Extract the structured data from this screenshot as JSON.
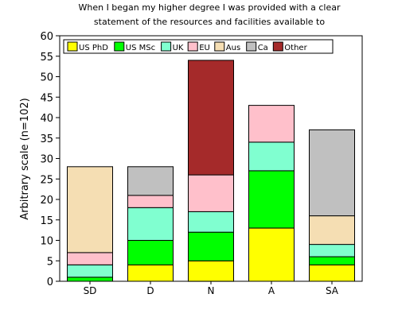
{
  "chart_data": {
    "type": "bar",
    "stacked": true,
    "title_lines": [
      "When I began my higher degree I was provided with a clear",
      "statement of the resources and facilities available to"
    ],
    "xlabel": "",
    "ylabel": "Arbitrary scale (n=102)",
    "ylim": [
      0,
      60
    ],
    "yticks": [
      0,
      5,
      10,
      15,
      20,
      25,
      30,
      35,
      40,
      45,
      50,
      55,
      60
    ],
    "grid": false,
    "legend_position": "top",
    "categories": [
      "SD",
      "D",
      "N",
      "A",
      "SA"
    ],
    "series": [
      {
        "name": "US PhD",
        "color": "#ffff00",
        "values": [
          0,
          4,
          5,
          13,
          4
        ]
      },
      {
        "name": "US MSc",
        "color": "#00ff00",
        "values": [
          1,
          6,
          7,
          14,
          2
        ]
      },
      {
        "name": "UK",
        "color": "#80ffd0",
        "values": [
          3,
          8,
          5,
          7,
          3
        ]
      },
      {
        "name": "EU",
        "color": "#ffc0cb",
        "values": [
          3,
          3,
          9,
          9,
          0
        ]
      },
      {
        "name": "Aus",
        "color": "#f5deb3",
        "values": [
          21,
          0,
          0,
          0,
          7
        ]
      },
      {
        "name": "Ca",
        "color": "#c0c0c0",
        "values": [
          0,
          7,
          0,
          0,
          21
        ]
      },
      {
        "name": "Other",
        "color": "#a52a2a",
        "values": [
          0,
          0,
          28,
          0,
          0
        ]
      }
    ]
  }
}
